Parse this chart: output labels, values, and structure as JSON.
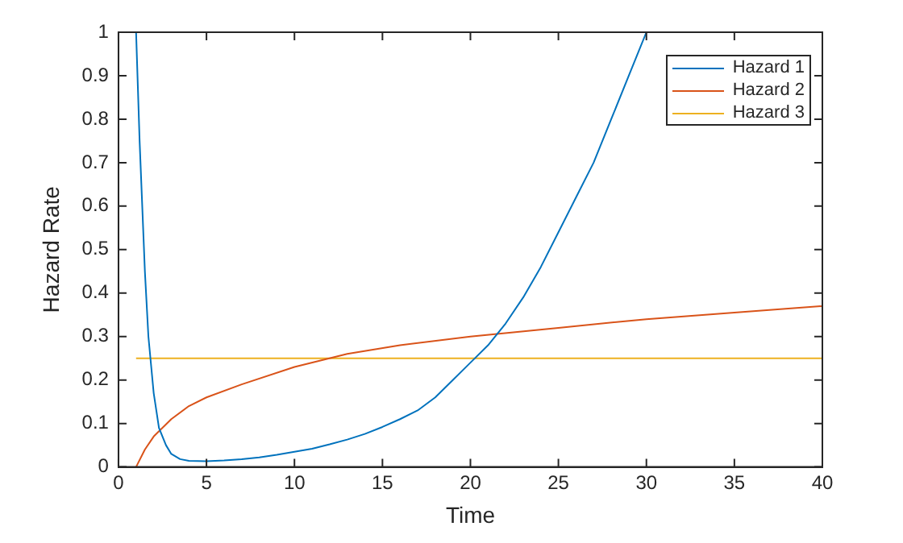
{
  "chart_data": {
    "type": "line",
    "xlabel": "Time",
    "ylabel": "Hazard Rate",
    "xlim": [
      0,
      40
    ],
    "ylim": [
      0,
      1
    ],
    "xticks": [
      0,
      5,
      10,
      15,
      20,
      25,
      30,
      35,
      40
    ],
    "yticks": [
      0,
      0.1,
      0.2,
      0.3,
      0.4,
      0.5,
      0.6,
      0.7,
      0.8,
      0.9,
      1
    ],
    "grid": false,
    "legend": "top right",
    "line_style": "solid",
    "series": [
      {
        "name": "Hazard 1",
        "color": "#0072bd",
        "x": [
          1,
          1.2,
          1.5,
          1.7,
          2,
          2.3,
          2.7,
          3,
          3.5,
          4,
          5,
          6,
          7,
          8,
          9,
          10,
          11,
          12,
          13,
          14,
          15,
          16,
          17,
          18,
          19,
          20,
          21,
          22,
          23,
          24,
          25,
          26,
          27,
          28,
          29,
          30
        ],
        "values": [
          1,
          0.75,
          0.45,
          0.3,
          0.17,
          0.09,
          0.05,
          0.03,
          0.018,
          0.014,
          0.013,
          0.015,
          0.018,
          0.022,
          0.028,
          0.035,
          0.042,
          0.052,
          0.063,
          0.076,
          0.092,
          0.11,
          0.13,
          0.16,
          0.2,
          0.24,
          0.28,
          0.33,
          0.39,
          0.46,
          0.54,
          0.62,
          0.7,
          0.8,
          0.9,
          1
        ]
      },
      {
        "name": "Hazard 2",
        "color": "#d95319",
        "x": [
          1,
          1.5,
          2,
          3,
          4,
          5,
          7,
          10,
          13,
          16,
          20,
          25,
          30,
          35,
          40
        ],
        "values": [
          0,
          0.04,
          0.07,
          0.11,
          0.14,
          0.16,
          0.19,
          0.23,
          0.26,
          0.28,
          0.3,
          0.32,
          0.34,
          0.355,
          0.37
        ]
      },
      {
        "name": "Hazard 3",
        "color": "#edb120",
        "x": [
          1,
          40
        ],
        "values": [
          0.25,
          0.25
        ]
      }
    ]
  }
}
